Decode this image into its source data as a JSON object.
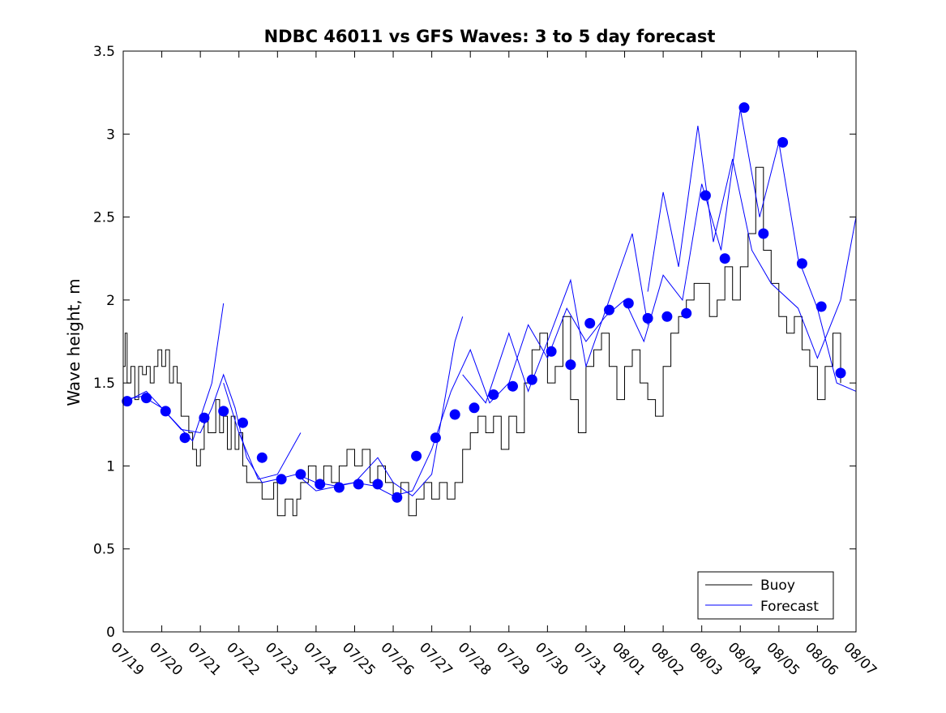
{
  "chart_data": {
    "type": "line",
    "title": "NDBC 46011 vs GFS Waves: 3 to 5 day forecast",
    "xlabel": "",
    "ylabel": "Wave height, m",
    "x_tick_labels": [
      "07/19",
      "07/20",
      "07/21",
      "07/22",
      "07/23",
      "07/24",
      "07/25",
      "07/26",
      "07/27",
      "07/28",
      "07/29",
      "07/30",
      "07/31",
      "08/01",
      "08/02",
      "08/03",
      "08/04",
      "08/05",
      "08/06",
      "08/07"
    ],
    "xlim_days": [
      0,
      19
    ],
    "ylim": [
      0,
      3.5
    ],
    "y_ticks": [
      0,
      0.5,
      1,
      1.5,
      2,
      2.5,
      3,
      3.5
    ],
    "y_tick_labels": [
      "0",
      "0.5",
      "1",
      "1.5",
      "2",
      "2.5",
      "3",
      "3.5"
    ],
    "grid": false,
    "legend": {
      "position": "bottom-right",
      "entries": [
        "Buoy",
        "Forecast"
      ]
    },
    "colors": {
      "buoy": "#000000",
      "forecast": "#0000ff",
      "markers": "#0000ff"
    },
    "series": [
      {
        "name": "Buoy",
        "color": "#000000",
        "points": [
          [
            0.0,
            1.6
          ],
          [
            0.05,
            1.8
          ],
          [
            0.1,
            1.5
          ],
          [
            0.2,
            1.6
          ],
          [
            0.3,
            1.4
          ],
          [
            0.4,
            1.6
          ],
          [
            0.5,
            1.55
          ],
          [
            0.6,
            1.6
          ],
          [
            0.7,
            1.5
          ],
          [
            0.8,
            1.6
          ],
          [
            0.9,
            1.7
          ],
          [
            1.0,
            1.6
          ],
          [
            1.1,
            1.7
          ],
          [
            1.2,
            1.5
          ],
          [
            1.3,
            1.6
          ],
          [
            1.4,
            1.5
          ],
          [
            1.5,
            1.3
          ],
          [
            1.7,
            1.2
          ],
          [
            1.8,
            1.1
          ],
          [
            1.9,
            1.0
          ],
          [
            2.0,
            1.1
          ],
          [
            2.1,
            1.3
          ],
          [
            2.2,
            1.2
          ],
          [
            2.4,
            1.4
          ],
          [
            2.5,
            1.2
          ],
          [
            2.6,
            1.3
          ],
          [
            2.7,
            1.1
          ],
          [
            2.8,
            1.3
          ],
          [
            2.9,
            1.1
          ],
          [
            3.0,
            1.2
          ],
          [
            3.1,
            1.0
          ],
          [
            3.2,
            0.9
          ],
          [
            3.4,
            0.9
          ],
          [
            3.6,
            0.8
          ],
          [
            3.8,
            0.8
          ],
          [
            3.9,
            0.9
          ],
          [
            4.0,
            0.7
          ],
          [
            4.2,
            0.8
          ],
          [
            4.4,
            0.7
          ],
          [
            4.5,
            0.8
          ],
          [
            4.6,
            0.9
          ],
          [
            4.8,
            1.0
          ],
          [
            5.0,
            0.9
          ],
          [
            5.2,
            1.0
          ],
          [
            5.4,
            0.9
          ],
          [
            5.6,
            1.0
          ],
          [
            5.8,
            1.1
          ],
          [
            6.0,
            1.0
          ],
          [
            6.2,
            1.1
          ],
          [
            6.4,
            0.9
          ],
          [
            6.6,
            1.0
          ],
          [
            6.8,
            0.9
          ],
          [
            7.0,
            0.8
          ],
          [
            7.2,
            0.9
          ],
          [
            7.4,
            0.7
          ],
          [
            7.6,
            0.8
          ],
          [
            7.8,
            0.9
          ],
          [
            8.0,
            0.8
          ],
          [
            8.2,
            0.9
          ],
          [
            8.4,
            0.8
          ],
          [
            8.6,
            0.9
          ],
          [
            8.8,
            1.1
          ],
          [
            9.0,
            1.2
          ],
          [
            9.2,
            1.3
          ],
          [
            9.4,
            1.2
          ],
          [
            9.6,
            1.3
          ],
          [
            9.8,
            1.1
          ],
          [
            10.0,
            1.3
          ],
          [
            10.2,
            1.2
          ],
          [
            10.4,
            1.5
          ],
          [
            10.6,
            1.7
          ],
          [
            10.8,
            1.8
          ],
          [
            11.0,
            1.5
          ],
          [
            11.2,
            1.6
          ],
          [
            11.4,
            1.9
          ],
          [
            11.6,
            1.4
          ],
          [
            11.8,
            1.2
          ],
          [
            12.0,
            1.6
          ],
          [
            12.2,
            1.7
          ],
          [
            12.4,
            1.8
          ],
          [
            12.6,
            1.6
          ],
          [
            12.8,
            1.4
          ],
          [
            13.0,
            1.6
          ],
          [
            13.2,
            1.7
          ],
          [
            13.4,
            1.5
          ],
          [
            13.6,
            1.4
          ],
          [
            13.8,
            1.3
          ],
          [
            14.0,
            1.6
          ],
          [
            14.2,
            1.8
          ],
          [
            14.4,
            1.9
          ],
          [
            14.6,
            2.0
          ],
          [
            14.8,
            2.1
          ],
          [
            15.0,
            2.1
          ],
          [
            15.2,
            1.9
          ],
          [
            15.4,
            2.0
          ],
          [
            15.6,
            2.2
          ],
          [
            15.8,
            2.0
          ],
          [
            16.0,
            2.2
          ],
          [
            16.2,
            2.4
          ],
          [
            16.4,
            2.8
          ],
          [
            16.6,
            2.3
          ],
          [
            16.8,
            2.1
          ],
          [
            17.0,
            1.9
          ],
          [
            17.2,
            1.8
          ],
          [
            17.4,
            1.9
          ],
          [
            17.6,
            1.7
          ],
          [
            17.8,
            1.6
          ],
          [
            18.0,
            1.4
          ],
          [
            18.2,
            1.6
          ],
          [
            18.4,
            1.8
          ],
          [
            18.6,
            1.5
          ]
        ]
      },
      {
        "name": "Forecast",
        "color": "#0000ff",
        "lines": [
          [
            [
              0.0,
              1.4
            ],
            [
              0.5,
              1.42
            ],
            [
              1.0,
              1.35
            ],
            [
              1.5,
              1.22
            ],
            [
              2.0,
              1.2
            ],
            [
              2.3,
              1.35
            ],
            [
              2.6,
              1.55
            ],
            [
              2.9,
              1.35
            ],
            [
              3.2,
              1.05
            ],
            [
              3.6,
              0.9
            ],
            [
              4.0,
              0.92
            ],
            [
              4.5,
              0.95
            ],
            [
              5.0,
              0.9
            ],
            [
              5.5,
              0.88
            ],
            [
              6.0,
              0.9
            ],
            [
              6.5,
              0.88
            ],
            [
              7.0,
              0.82
            ],
            [
              7.5,
              0.85
            ],
            [
              8.0,
              1.1
            ],
            [
              8.5,
              1.45
            ],
            [
              9.0,
              1.7
            ],
            [
              9.5,
              1.38
            ],
            [
              10.0,
              1.5
            ],
            [
              10.5,
              1.85
            ],
            [
              11.0,
              1.65
            ],
            [
              11.5,
              1.95
            ],
            [
              12.0,
              1.75
            ],
            [
              12.5,
              1.9
            ],
            [
              13.0,
              2.0
            ],
            [
              13.5,
              1.75
            ],
            [
              14.0,
              2.15
            ],
            [
              14.5,
              2.0
            ],
            [
              15.0,
              2.7
            ],
            [
              15.5,
              2.3
            ],
            [
              16.0,
              3.15
            ],
            [
              16.5,
              2.5
            ],
            [
              17.0,
              2.95
            ],
            [
              17.5,
              2.25
            ],
            [
              18.0,
              1.95
            ],
            [
              18.5,
              1.5
            ],
            [
              19.0,
              1.45
            ]
          ],
          [
            [
              0.0,
              1.38
            ],
            [
              0.6,
              1.45
            ],
            [
              1.2,
              1.3
            ],
            [
              1.8,
              1.15
            ],
            [
              2.3,
              1.5
            ],
            [
              2.6,
              1.98
            ]
          ],
          [
            [
              2.6,
              1.5
            ],
            [
              3.0,
              1.2
            ],
            [
              3.5,
              0.92
            ],
            [
              4.0,
              0.95
            ],
            [
              4.6,
              1.2
            ]
          ],
          [
            [
              4.5,
              0.95
            ],
            [
              5.0,
              0.85
            ],
            [
              6.0,
              0.9
            ],
            [
              6.6,
              1.05
            ],
            [
              7.0,
              0.9
            ],
            [
              7.5,
              0.82
            ],
            [
              8.0,
              0.95
            ],
            [
              8.6,
              1.75
            ],
            [
              8.8,
              1.9
            ]
          ],
          [
            [
              8.8,
              1.55
            ],
            [
              9.4,
              1.38
            ],
            [
              10.0,
              1.8
            ],
            [
              10.5,
              1.45
            ],
            [
              11.0,
              1.75
            ],
            [
              11.6,
              2.12
            ],
            [
              12.0,
              1.6
            ],
            [
              12.6,
              2.0
            ],
            [
              13.2,
              2.4
            ],
            [
              13.6,
              1.85
            ]
          ],
          [
            [
              13.6,
              2.05
            ],
            [
              14.0,
              2.65
            ],
            [
              14.4,
              2.2
            ],
            [
              14.9,
              3.05
            ],
            [
              15.3,
              2.35
            ],
            [
              15.8,
              2.85
            ],
            [
              16.3,
              2.3
            ],
            [
              16.8,
              2.1
            ],
            [
              17.5,
              1.95
            ],
            [
              18.0,
              1.65
            ],
            [
              18.6,
              2.0
            ],
            [
              19.0,
              2.5
            ]
          ]
        ],
        "markers": [
          [
            0.1,
            1.39
          ],
          [
            0.6,
            1.41
          ],
          [
            1.1,
            1.33
          ],
          [
            1.6,
            1.17
          ],
          [
            2.1,
            1.29
          ],
          [
            2.6,
            1.33
          ],
          [
            3.1,
            1.26
          ],
          [
            3.6,
            1.05
          ],
          [
            4.1,
            0.92
          ],
          [
            4.6,
            0.95
          ],
          [
            5.1,
            0.89
          ],
          [
            5.6,
            0.87
          ],
          [
            6.1,
            0.89
          ],
          [
            6.6,
            0.89
          ],
          [
            7.1,
            0.81
          ],
          [
            7.6,
            1.06
          ],
          [
            8.1,
            1.17
          ],
          [
            8.6,
            1.31
          ],
          [
            9.1,
            1.35
          ],
          [
            9.6,
            1.43
          ],
          [
            10.1,
            1.48
          ],
          [
            10.6,
            1.52
          ],
          [
            11.1,
            1.69
          ],
          [
            11.6,
            1.61
          ],
          [
            12.1,
            1.86
          ],
          [
            12.6,
            1.94
          ],
          [
            13.1,
            1.98
          ],
          [
            13.6,
            1.89
          ],
          [
            14.1,
            1.9
          ],
          [
            14.6,
            1.92
          ],
          [
            15.1,
            2.63
          ],
          [
            15.6,
            2.25
          ],
          [
            16.1,
            3.16
          ],
          [
            16.6,
            2.4
          ],
          [
            17.1,
            2.95
          ],
          [
            17.6,
            2.22
          ],
          [
            18.1,
            1.96
          ],
          [
            18.6,
            1.56
          ]
        ]
      }
    ]
  }
}
